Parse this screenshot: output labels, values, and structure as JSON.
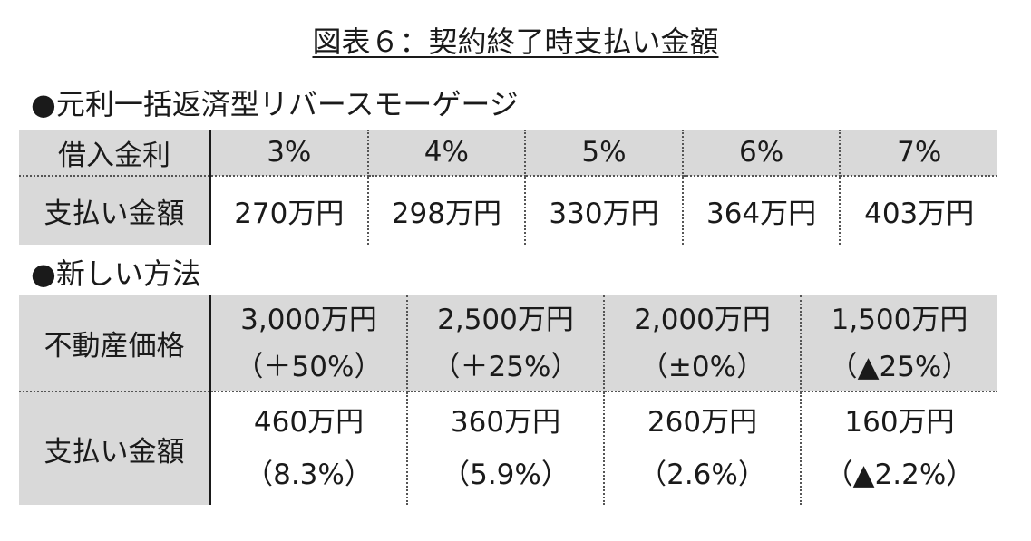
{
  "title": "図表６：契約終了時支払い金額",
  "section1": {
    "heading": "●元利一括返済型リバースモーゲージ",
    "row_headers": [
      "借入金利",
      "支払い金額"
    ],
    "rates": [
      "3%",
      "4%",
      "5%",
      "6%",
      "7%"
    ],
    "payments": [
      "270万円",
      "298万円",
      "330万円",
      "364万円",
      "403万円"
    ]
  },
  "section2": {
    "heading": "●新しい方法",
    "row_headers": [
      "不動産価格",
      "支払い金額"
    ],
    "prices": [
      {
        "amount": "3,000万円",
        "change": "（＋50%）"
      },
      {
        "amount": "2,500万円",
        "change": "（＋25%）"
      },
      {
        "amount": "2,000万円",
        "change": "（±0%）"
      },
      {
        "amount": "1,500万円",
        "change": "（▲25%）"
      }
    ],
    "payments": [
      {
        "amount": "460万円",
        "rate": "（8.3%）"
      },
      {
        "amount": "360万円",
        "rate": "（5.9%）"
      },
      {
        "amount": "260万円",
        "rate": "（2.6%）"
      },
      {
        "amount": "160万円",
        "rate": "（▲2.2%）"
      }
    ]
  }
}
